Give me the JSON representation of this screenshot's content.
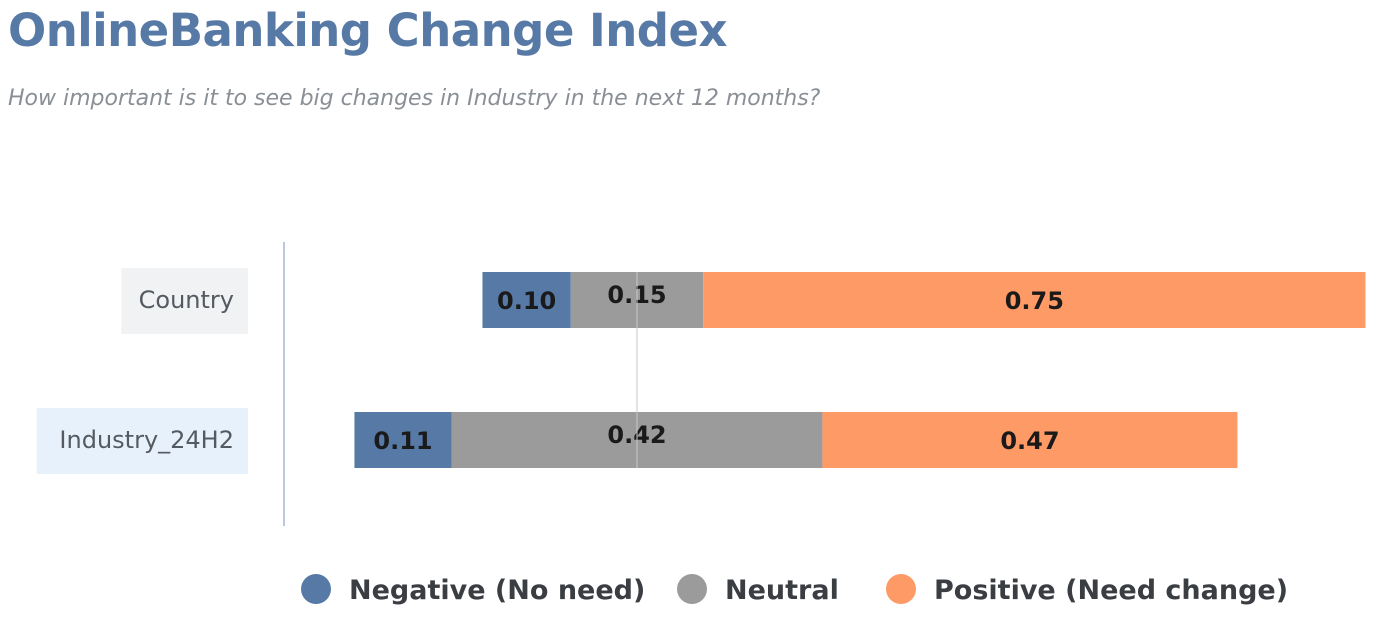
{
  "colors": {
    "title": "#5679a6",
    "negative": "#5679a6",
    "neutral": "#9b9b9b",
    "positive": "#fe9a66",
    "axis": "#b8c8e0",
    "category_bg": [
      "#f1f2f4",
      "#e6f1fc"
    ]
  },
  "chart_data": {
    "type": "bar",
    "orientation": "horizontal",
    "stacked": true,
    "title": "OnlineBanking Change Index",
    "subtitle": "How important is it to see big changes in Industry in the next 12 months?",
    "categories": [
      "Country",
      "Industry_24H2"
    ],
    "series": [
      {
        "name": "Negative (No need)",
        "values": [
          0.1,
          0.11
        ],
        "labels": [
          "0.10",
          "0.11"
        ]
      },
      {
        "name": "Neutral",
        "values": [
          0.15,
          0.42
        ],
        "labels": [
          "0.15",
          "0.42"
        ]
      },
      {
        "name": "Positive (Need change)",
        "values": [
          0.75,
          0.47
        ],
        "labels": [
          "0.75",
          "0.47"
        ]
      }
    ],
    "centered_on": "neutral_midpoint",
    "grid": false,
    "legend": "bottom"
  }
}
